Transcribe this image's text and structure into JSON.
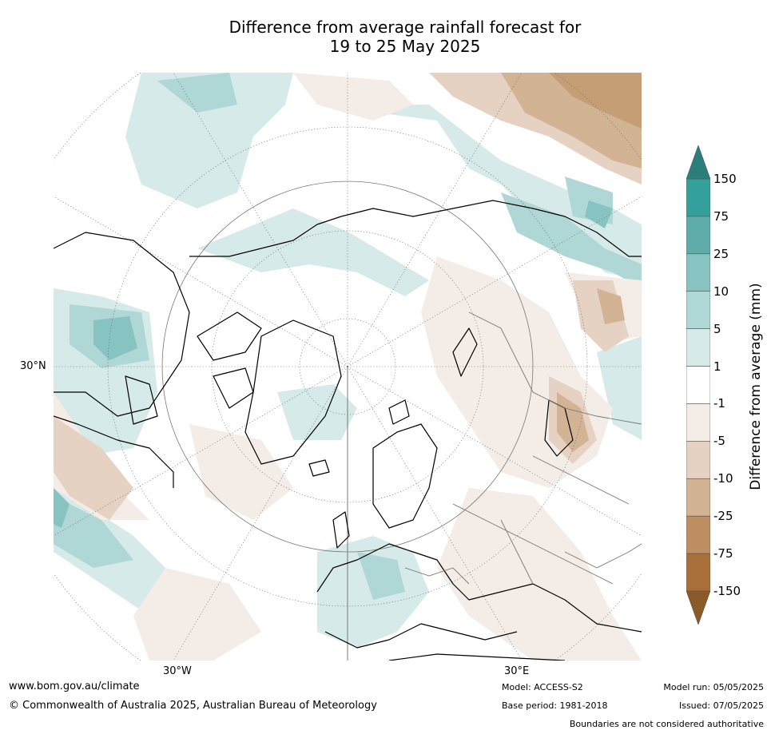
{
  "title": {
    "line1": "Difference from average rainfall forecast for",
    "line2": "19 to 25 May 2025"
  },
  "map": {
    "projection": "north-polar-stereographic",
    "labels": {
      "lat_left": "30°N",
      "lon_left": "30°W",
      "lon_right": "30°E"
    }
  },
  "colorbar": {
    "title": "Difference from average (mm)",
    "ticks": [
      "150",
      "75",
      "25",
      "10",
      "5",
      "1",
      "-1",
      "-5",
      "-10",
      "-25",
      "-75",
      "-150"
    ],
    "colors": [
      "#2a7f7b",
      "#34a09c",
      "#5fadab",
      "#86c3c1",
      "#aed7d5",
      "#d6eae9",
      "#ffffff",
      "#f4ece6",
      "#e5d2c2",
      "#d2b393",
      "#bd8f62",
      "#a86f3b",
      "#8c5a26"
    ]
  },
  "footer": {
    "site": "www.bom.gov.au/climate",
    "copyright": "© Commonwealth of Australia 2025, Australian Bureau of Meteorology",
    "model": "Model: ACCESS-S2",
    "base_period": "Base period: 1981-2018",
    "model_run": "Model run: 05/05/2025",
    "issued": "Issued: 07/05/2025",
    "disclaimer": "Boundaries are not considered authoritative"
  }
}
